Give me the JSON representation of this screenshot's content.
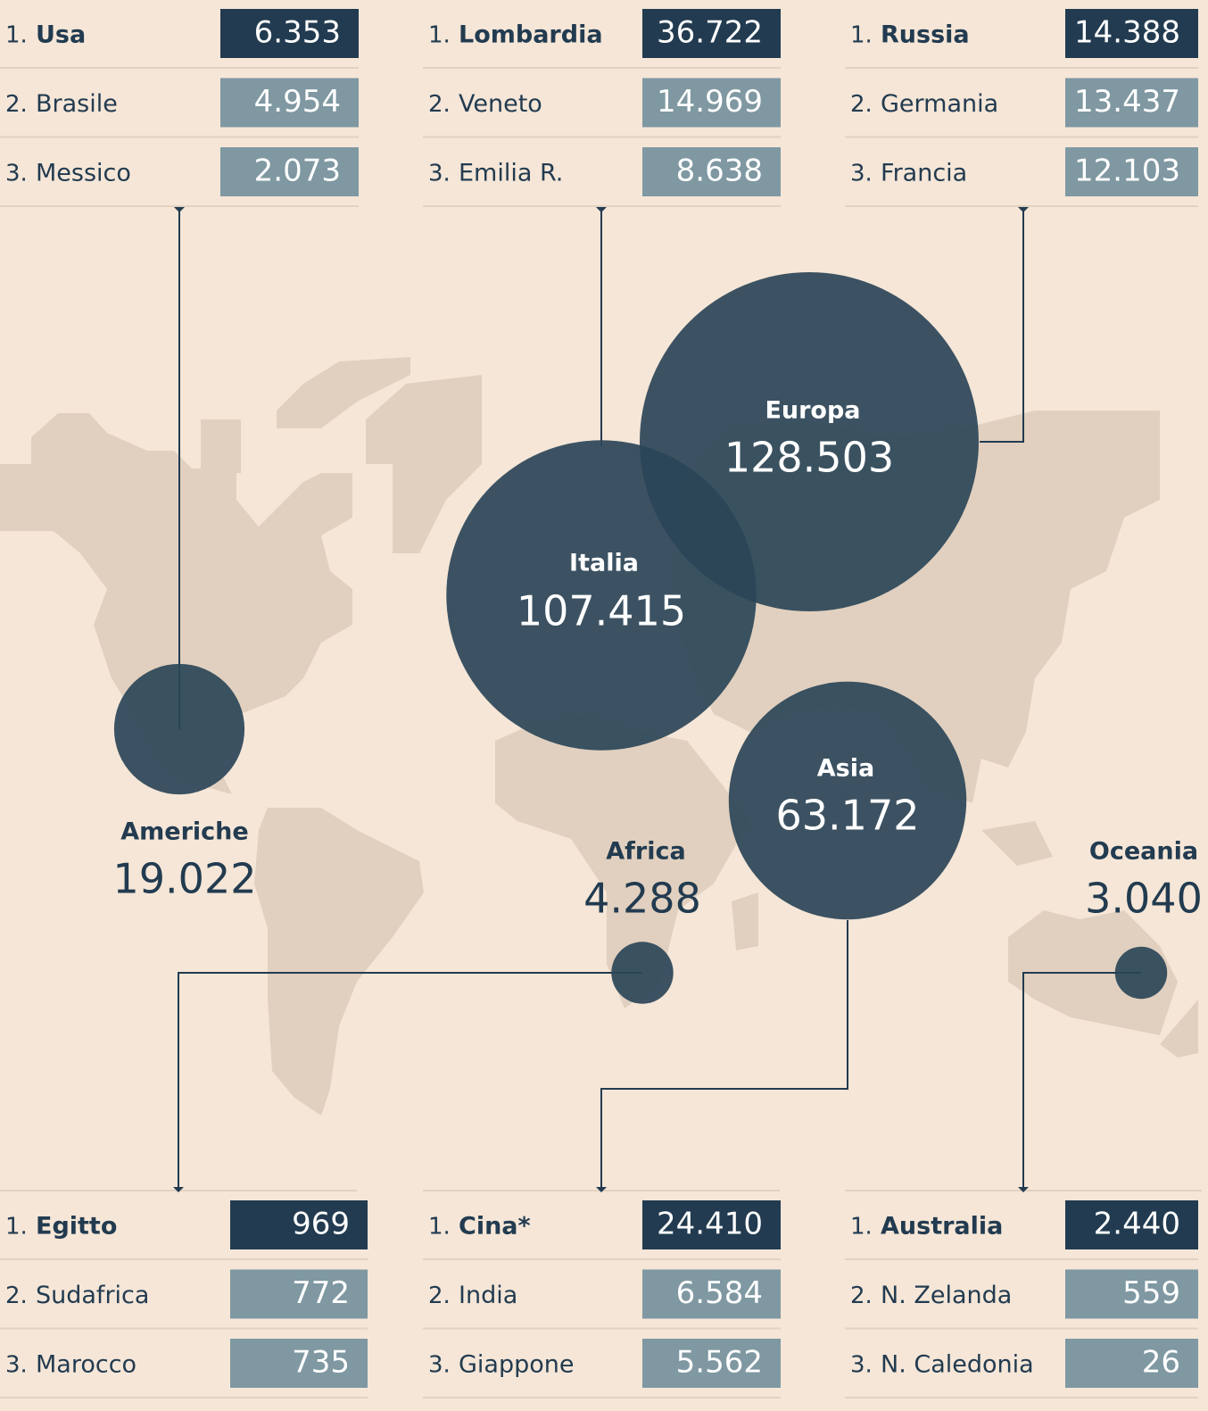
{
  "top_tables": [
    {
      "rows": [
        {
          "rank": "1.",
          "name": "Usa",
          "value": "6.353"
        },
        {
          "rank": "2.",
          "name": "Brasile",
          "value": "4.954"
        },
        {
          "rank": "3.",
          "name": "Messico",
          "value": "2.073"
        }
      ]
    },
    {
      "rows": [
        {
          "rank": "1.",
          "name": "Lombardia",
          "value": "36.722"
        },
        {
          "rank": "2.",
          "name": "Veneto",
          "value": "14.969"
        },
        {
          "rank": "3.",
          "name": "Emilia R.",
          "value": "8.638"
        }
      ]
    },
    {
      "rows": [
        {
          "rank": "1.",
          "name": "Russia",
          "value": "14.388"
        },
        {
          "rank": "2.",
          "name": "Germania",
          "value": "13.437"
        },
        {
          "rank": "3.",
          "name": "Francia",
          "value": "12.103"
        }
      ]
    }
  ],
  "bottom_tables": [
    {
      "rows": [
        {
          "rank": "1.",
          "name": "Egitto",
          "value": "969"
        },
        {
          "rank": "2.",
          "name": "Sudafrica",
          "value": "772"
        },
        {
          "rank": "3.",
          "name": "Marocco",
          "value": "735"
        }
      ]
    },
    {
      "rows": [
        {
          "rank": "1.",
          "name": "Cina*",
          "value": "24.410"
        },
        {
          "rank": "2.",
          "name": "India",
          "value": "6.584"
        },
        {
          "rank": "3.",
          "name": "Giappone",
          "value": "5.562"
        }
      ]
    },
    {
      "rows": [
        {
          "rank": "1.",
          "name": "Australia",
          "value": "2.440"
        },
        {
          "rank": "2.",
          "name": "N. Zelanda",
          "value": "559"
        },
        {
          "rank": "3.",
          "name": "N. Caledonia",
          "value": "26"
        }
      ]
    }
  ],
  "regions": [
    {
      "name": "Europa",
      "value": 128503,
      "label": "128.503"
    },
    {
      "name": "Italia",
      "value": 107415,
      "label": "107.415"
    },
    {
      "name": "Asia",
      "value": 63172,
      "label": "63.172"
    },
    {
      "name": "Americhe",
      "value": 19022,
      "label": "19.022"
    },
    {
      "name": "Africa",
      "value": 4288,
      "label": "4.288"
    },
    {
      "name": "Oceania",
      "value": 3040,
      "label": "3.040"
    }
  ]
}
